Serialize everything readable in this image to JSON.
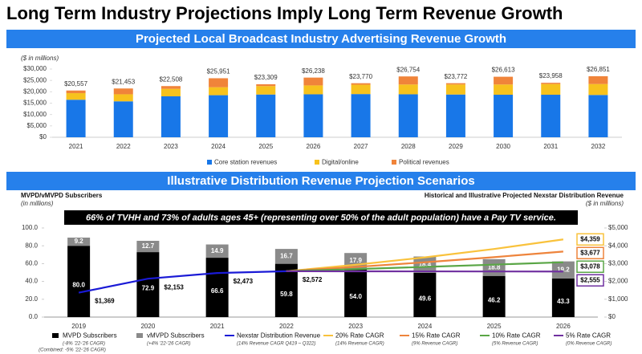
{
  "title": "Long Term Industry Projections Imply Long Term Revenue Growth",
  "chart_data": [
    {
      "type": "stacked_bar",
      "title": "Projected Local Broadcast Industry Advertising Revenue Growth",
      "unit_label": "($ in millions)",
      "categories": [
        "2021",
        "2022",
        "2023",
        "2024",
        "2025",
        "2026",
        "2027",
        "2028",
        "2029",
        "2030",
        "2031",
        "2032"
      ],
      "series": [
        {
          "name": "Core station revenues",
          "color": "#1877e8",
          "values": [
            16500,
            15800,
            18000,
            18500,
            18800,
            18900,
            19000,
            18900,
            18800,
            18700,
            18700,
            18600
          ]
        },
        {
          "name": "Digital/online",
          "color": "#f7c21d",
          "values": [
            2900,
            3100,
            3300,
            3500,
            3700,
            3900,
            4100,
            4300,
            4400,
            4500,
            4700,
            4800
          ]
        },
        {
          "name": "Political revenues",
          "color": "#f0843a",
          "values": [
            1157,
            2553,
            1208,
            3951,
            809,
            3438,
            670,
            3554,
            572,
            3413,
            558,
            3451
          ]
        }
      ],
      "totals": [
        20557,
        21453,
        22508,
        25951,
        23309,
        26238,
        23770,
        26754,
        23772,
        26613,
        23958,
        26851
      ],
      "total_labels": [
        "$20,557",
        "$21,453",
        "$22,508",
        "$25,951",
        "$23,309",
        "$26,238",
        "$23,770",
        "$26,754",
        "$23,772",
        "$26,613",
        "$23,958",
        "$26,851"
      ],
      "ylim": [
        0,
        30000
      ],
      "yticks": [
        {
          "value": 0,
          "label": "$0"
        },
        {
          "value": 5000,
          "label": "$5,000"
        },
        {
          "value": 10000,
          "label": "$10,000"
        },
        {
          "value": 15000,
          "label": "$15,000"
        },
        {
          "value": 20000,
          "label": "$20,000"
        },
        {
          "value": 25000,
          "label": "$25,000"
        },
        {
          "value": 30000,
          "label": "$30,000"
        }
      ],
      "grid": false,
      "legend": "bottom"
    },
    {
      "type": "bar_line",
      "title": "Illustrative Distribution Revenue Projection Scenarios",
      "left_axis_title": "MVPD/vMVPD Subscribers",
      "left_axis_unit": "(in millions)",
      "right_axis_title": "Historical and Illustrative Projected Nexstar Distribution Revenue",
      "right_axis_unit": "($ in millions)",
      "annotation": "66% of TVHH and 73% of adults ages 45+ (representing over 50% of the adult population) have a Pay TV service.",
      "combined_note": "(Combined: -5% '22-'26 CAGR)",
      "categories": [
        "2019",
        "2020",
        "2021",
        "2022",
        "2023",
        "2024",
        "2025",
        "2026"
      ],
      "ylim": [
        0,
        100
      ],
      "yticks": [
        {
          "value": 0,
          "label": "0.0"
        },
        {
          "value": 20,
          "label": "20.0"
        },
        {
          "value": 40,
          "label": "40.0"
        },
        {
          "value": 60,
          "label": "60.0"
        },
        {
          "value": 80,
          "label": "80.0"
        },
        {
          "value": 100,
          "label": "100.0"
        }
      ],
      "y2lim": [
        0,
        5000
      ],
      "y2ticks": [
        {
          "value": 0,
          "label": "$0"
        },
        {
          "value": 1000,
          "label": "$1,000"
        },
        {
          "value": 2000,
          "label": "$2,000"
        },
        {
          "value": 3000,
          "label": "$3,000"
        },
        {
          "value": 4000,
          "label": "$4,000"
        },
        {
          "value": 5000,
          "label": "$5,000"
        }
      ],
      "series": [
        {
          "name": "MVPD Subscribers",
          "note": "(-8% '22-'26 CAGR)",
          "type": "bar",
          "color": "#000000",
          "values": [
            80.0,
            72.9,
            66.6,
            59.8,
            54.0,
            49.6,
            46.2,
            43.3
          ],
          "value_labels": [
            "80.0",
            "72.9",
            "66.6",
            "59.8",
            "54.0",
            "49.6",
            "46.2",
            "43.3"
          ]
        },
        {
          "name": "vMVPD Subscribers",
          "note": "(+4% '22-'26 CAGR)",
          "type": "bar",
          "color": "#8a8a8a",
          "values": [
            9.2,
            12.7,
            14.9,
            16.7,
            17.9,
            18.4,
            18.8,
            19.2
          ]
        },
        {
          "name": "Nexstar Distribution Revenue",
          "note": "(14% Revenue CAGR Q419 – Q322)",
          "type": "line",
          "axis": "y2",
          "color": "#1a1ad6",
          "values": [
            1369,
            2153,
            2473,
            2572,
            null,
            null,
            null,
            null
          ],
          "value_labels": [
            "$1,369",
            "$2,153",
            "$2,473",
            "$2,572",
            null,
            null,
            null,
            null
          ]
        },
        {
          "name": "20% Rate CAGR",
          "note": "(14% Revenue CAGR)",
          "type": "line",
          "axis": "y2",
          "color": "#f9c23c",
          "values": [
            null,
            null,
            null,
            2572,
            2935,
            3349,
            3820,
            4359
          ],
          "value_labels": [
            null,
            null,
            null,
            null,
            null,
            null,
            null,
            "$4,359"
          ]
        },
        {
          "name": "15% Rate CAGR",
          "note": "(9% Revenue CAGR)",
          "type": "line",
          "axis": "y2",
          "color": "#ee843c",
          "values": [
            null,
            null,
            null,
            2572,
            2812,
            3075,
            3363,
            3677
          ],
          "value_labels": [
            null,
            null,
            null,
            null,
            null,
            null,
            null,
            "$3,677"
          ]
        },
        {
          "name": "10% Rate CAGR",
          "note": "(5% Revenue CAGR)",
          "type": "line",
          "axis": "y2",
          "color": "#5aa646",
          "values": [
            null,
            null,
            null,
            2572,
            2691,
            2815,
            2943,
            3078
          ],
          "value_labels": [
            null,
            null,
            null,
            null,
            null,
            null,
            null,
            "$3,078"
          ]
        },
        {
          "name": "5% Rate CAGR",
          "note": "(0% Revenue CAGR)",
          "type": "line",
          "axis": "y2",
          "color": "#7030a0",
          "values": [
            null,
            null,
            null,
            2572,
            2568,
            2564,
            2559,
            2555
          ],
          "value_labels": [
            null,
            null,
            null,
            null,
            null,
            null,
            null,
            "$2,555"
          ]
        }
      ],
      "legend": "bottom"
    }
  ]
}
